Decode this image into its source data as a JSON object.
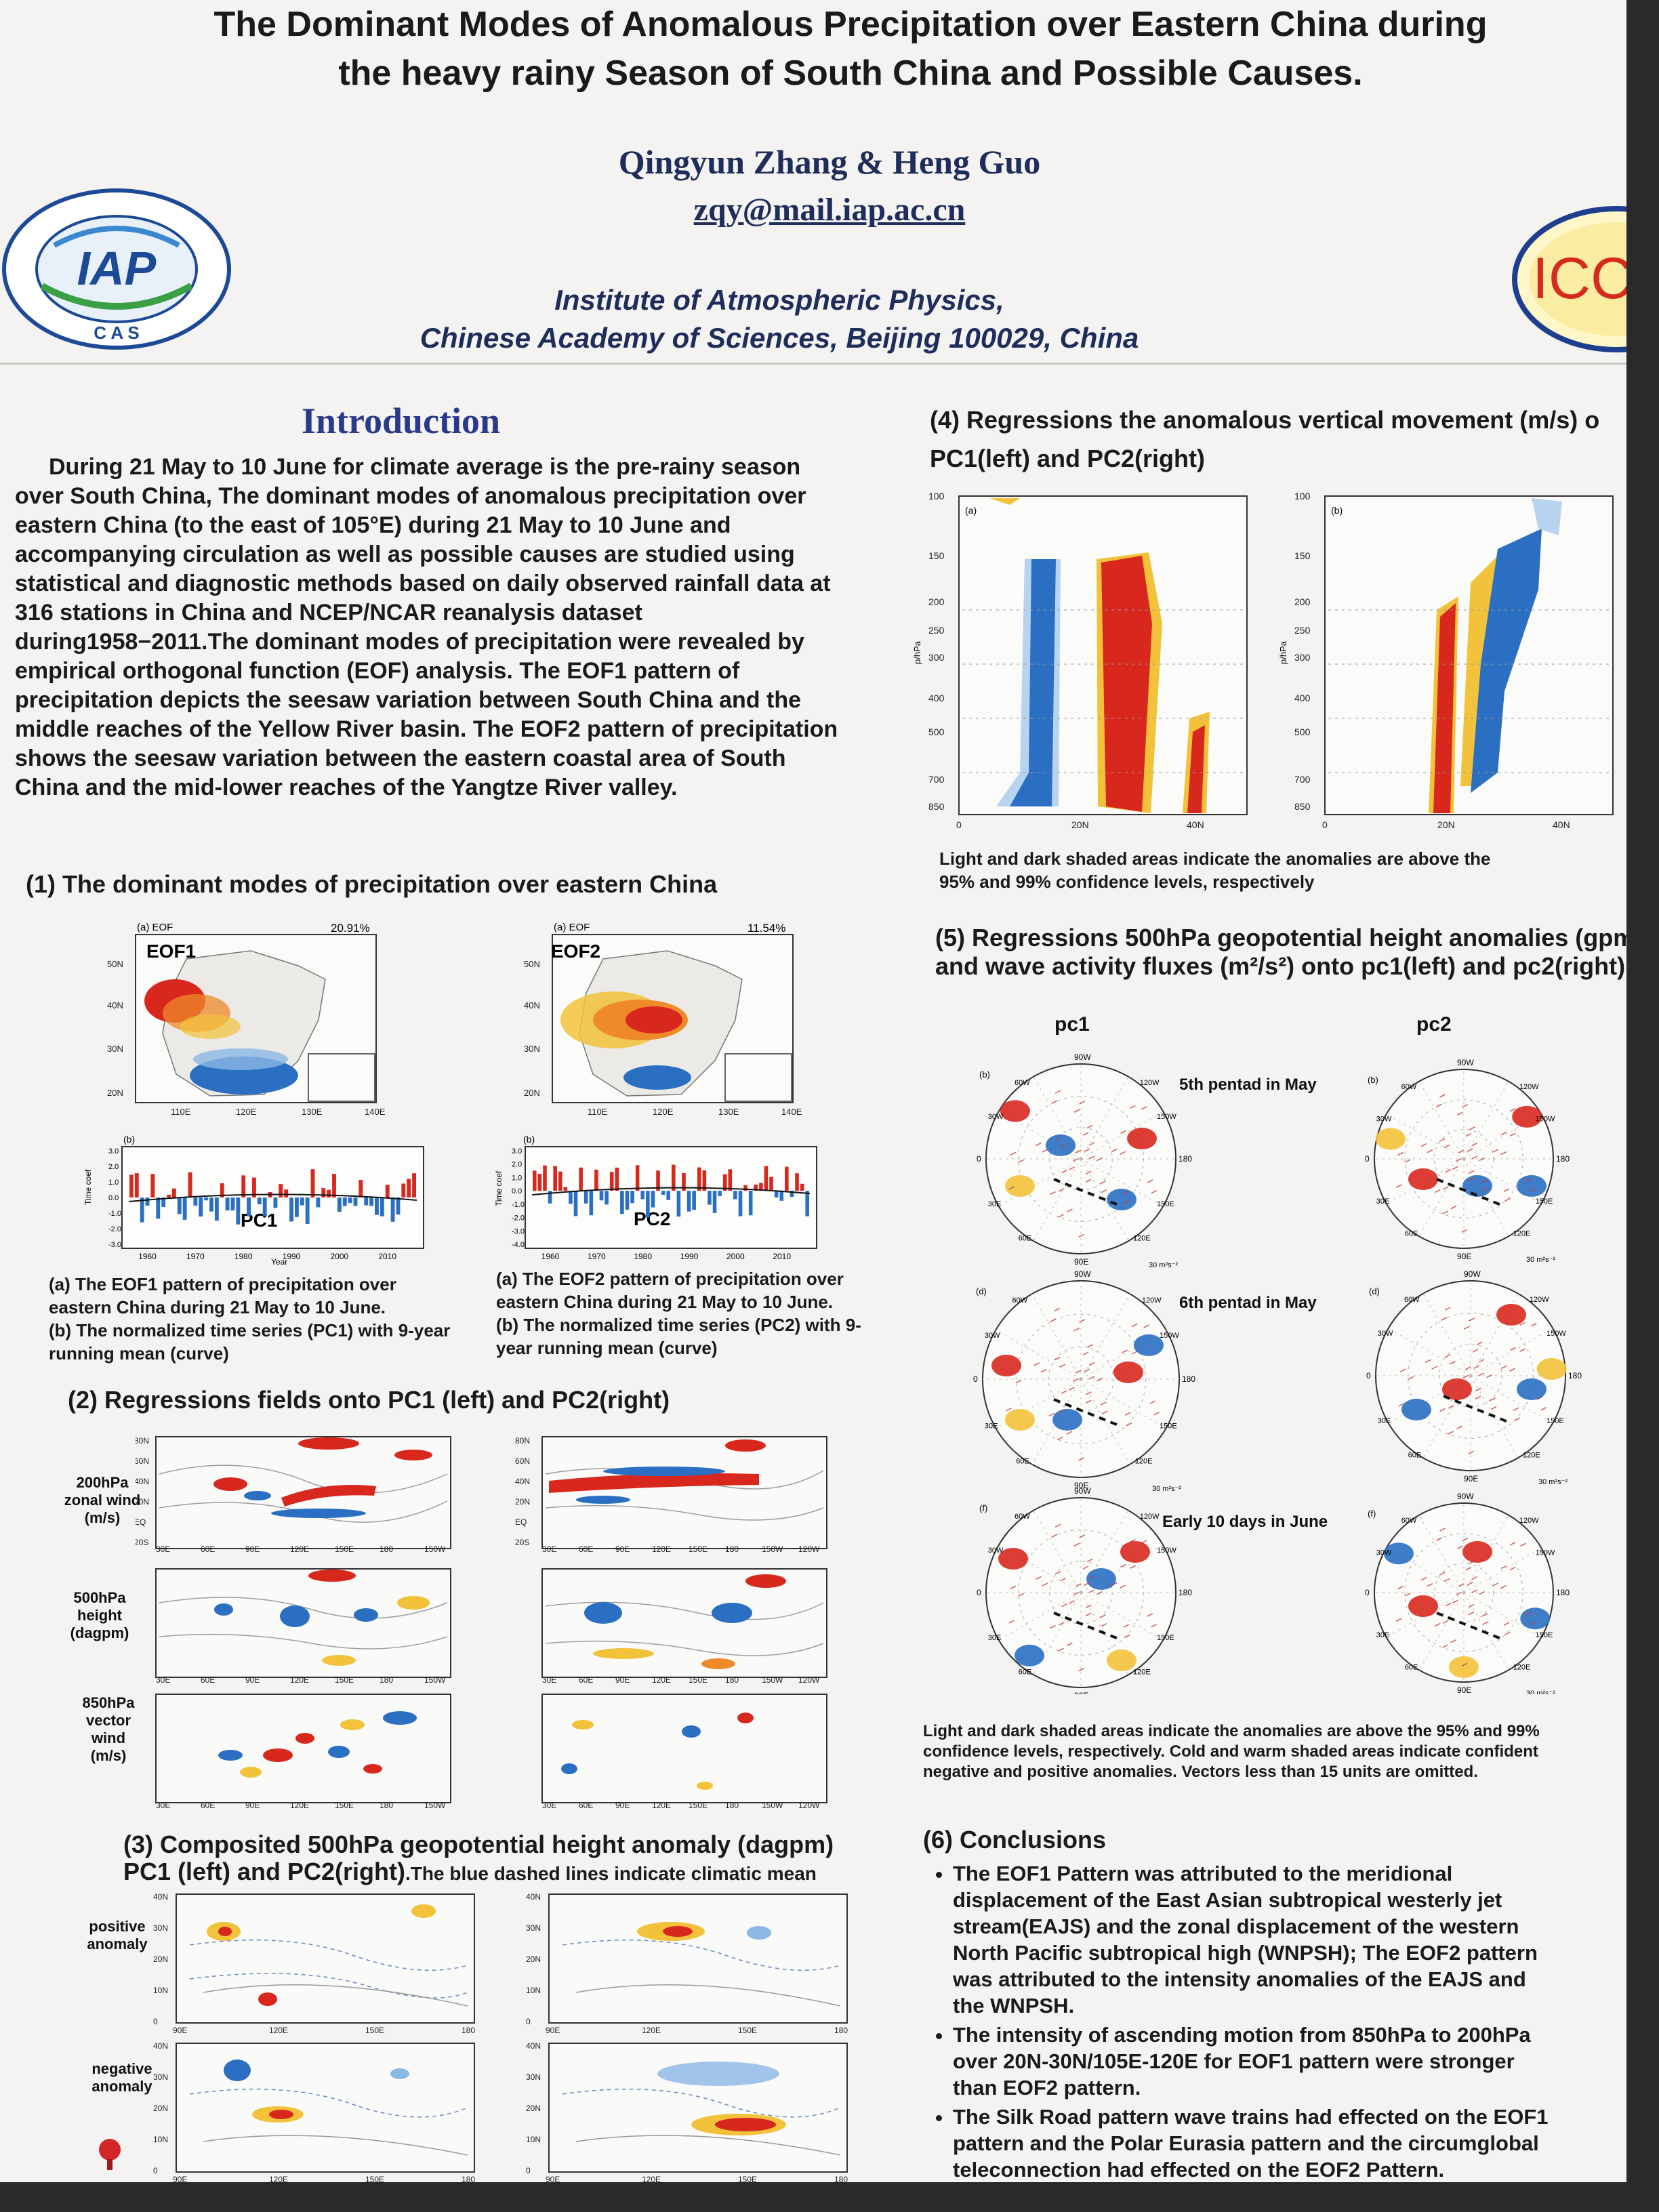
{
  "poster": {
    "title_line1": "The Dominant Modes of Anomalous Precipitation over Eastern China during",
    "title_line2": "the heavy rainy Season of South China and Possible Causes.",
    "authors": "Qingyun Zhang & Heng Guo",
    "email": "zqy@mail.iap.ac.cn",
    "institute_line1": "Institute of Atmospheric Physics,",
    "institute_line2": "Chinese Academy of Sciences, Beijing 100029, China",
    "logo_left_text": "IAP",
    "logo_left_sub": "C A S",
    "logo_right_text": "ICCE"
  },
  "intro": {
    "heading": "Introduction",
    "text": "During 21 May to 10 June for climate average is the pre-rainy season over South China, The dominant modes of anomalous precipitation over eastern China (to the east of 105°E) during 21 May to 10 June and accompanying circulation as well as possible causes are studied using statistical and diagnostic methods based on daily observed rainfall data at 316 stations in China and NCEP/NCAR reanalysis dataset during1958−2011.The dominant modes of precipitation were revealed by empirical orthogonal function (EOF) analysis. The EOF1 pattern of precipitation depicts the seesaw variation between South China and the middle reaches of the Yellow River basin. The EOF2 pattern of precipitation shows the  seesaw variation between the eastern coastal area  of South China and the mid-lower reaches of the Yangtze River valley."
  },
  "sec1": {
    "title": "(1)  The dominant  modes of  precipitation over  eastern China",
    "eof1_label": "EOF1",
    "eof1_pct": "20.91%",
    "eof2_label": "EOF2",
    "eof2_pct": "11.54%",
    "panel_a": "(a) EOF",
    "panel_b": "(b)",
    "pc1_label": "PC1",
    "pc2_label": "PC2",
    "map_lat_ticks": [
      "50N",
      "40N",
      "30N",
      "20N"
    ],
    "map_lon_ticks": [
      "110E",
      "120E",
      "130E",
      "140E"
    ],
    "ts_years": [
      "1960",
      "1970",
      "1980",
      "1990",
      "2000",
      "2010"
    ],
    "ts_xlabel": "Year",
    "ts_ylabel": "Time coef",
    "ts_yticks": [
      "3.0",
      "2.0",
      "1.0",
      "0.0",
      "-1.0",
      "-2.0",
      "-3.0"
    ],
    "ts2_yticks": [
      "3.0",
      "2.0",
      "1.0",
      "0.0",
      "-1.0",
      "-2.0",
      "-3.0",
      "-4.0"
    ],
    "cap_left": "(a) The EOF1 pattern of precipitation over eastern China during 21 May to 10 June.\n(b) The normalized time series (PC1) with 9-year running mean (curve)",
    "cap_right": "(a) The EOF2 pattern of precipitation over eastern China during 21 May to 10 June.\n(b) The normalized time series (PC2) with 9-year running mean (curve)"
  },
  "sec2": {
    "title": "(2)  Regressions fields onto PC1 (left) and PC2(right)",
    "row_labels": [
      "200hPa zonal wind (m/s)",
      "500hPa height (dagpm)",
      "850hPa vector wind (m/s)"
    ],
    "lat_ticks": [
      "80N",
      "60N",
      "40N",
      "20N",
      "EQ",
      "20S"
    ],
    "lon_ticks": [
      "30E",
      "60E",
      "90E",
      "120E",
      "150E",
      "180",
      "150W"
    ],
    "lon_ticks_right": [
      "30E",
      "60E",
      "90E",
      "120E",
      "150E",
      "180",
      "150W",
      "120W"
    ]
  },
  "sec3": {
    "title_line1": "(3) Composited 500hPa geopotential height anomaly (dagpm)",
    "title_line2": "PC1 (left) and PC2(right)",
    "title_note": ".The blue dashed lines indicate climatic mean",
    "row_labels": [
      "positive anomaly",
      "negative anomaly"
    ],
    "lat_ticks": [
      "40N",
      "30N",
      "20N",
      "10N",
      "0"
    ],
    "lon_ticks": [
      "90E",
      "120E",
      "150E",
      "180"
    ]
  },
  "sec4": {
    "title_line1": "(4) Regressions the anomalous vertical movement (m/s) o",
    "title_line2": "PC1(left) and PC2(right)",
    "panel_a": "(a)",
    "panel_b": "(b)",
    "ylabel": "p/hPa",
    "yticks": [
      "100",
      "150",
      "200",
      "250",
      "300",
      "400",
      "500",
      "700",
      "850"
    ],
    "xticks": [
      "0",
      "20N",
      "40N"
    ],
    "caption": "Light and dark shaded areas indicate the anomalies are above the 95% and 99% confidence levels, respectively"
  },
  "sec5": {
    "title_line1": "(5) Regressions 500hPa geopotential height anomalies (gpm",
    "title_line2": "and wave activity fluxes (m²/s²) onto pc1(left) and pc2(right)",
    "col_labels": [
      "pc1",
      "pc2"
    ],
    "row_labels": [
      "5th pentad in May",
      "6th pentad in May",
      "Early 10 days  in June"
    ],
    "panel_tags": [
      "(b)",
      "(b)",
      "(d)",
      "(d)",
      "(f)",
      "(f)"
    ],
    "lon_labels": [
      "90W",
      "120W",
      "150W",
      "180",
      "150E",
      "120E",
      "90E",
      "60E",
      "30E",
      "0",
      "30W",
      "60W"
    ],
    "vector_scale": "30 m²s⁻²",
    "caption": "Light and dark shaded areas indicate the anomalies are above the 95% and 99% confidence levels, respectively. Cold and warm shaded areas indicate confident negative and positive anomalies. Vectors less than 15 units are omitted."
  },
  "sec6": {
    "title": "(6) Conclusions",
    "bullets": [
      "The EOF1 Pattern was attributed to the meridional displacement of the East Asian subtropical westerly jet stream(EAJS) and the zonal displacement of the western North Pacific subtropical high (WNPSH); The EOF2 pattern was attributed to the intensity anomalies of the EAJS and the WNPSH.",
      "The  intensity of  ascending  motion from 850hPa to 200hPa over 20N-30N/105E-120E for  EOF1  pattern were  stronger than EOF2 pattern.",
      "The Silk Road pattern  wave trains had effected on the EOF1 pattern and the Polar Eurasia pattern and the circumglobal teleconnection had effected on the  EOF2 Pattern."
    ]
  },
  "colors": {
    "title_blue": "#2a3a8a",
    "anom_red": "#d8281e",
    "anom_blue": "#2a6fc2",
    "anom_yellow": "#f2c23a",
    "anom_orange": "#ee8a2a"
  }
}
